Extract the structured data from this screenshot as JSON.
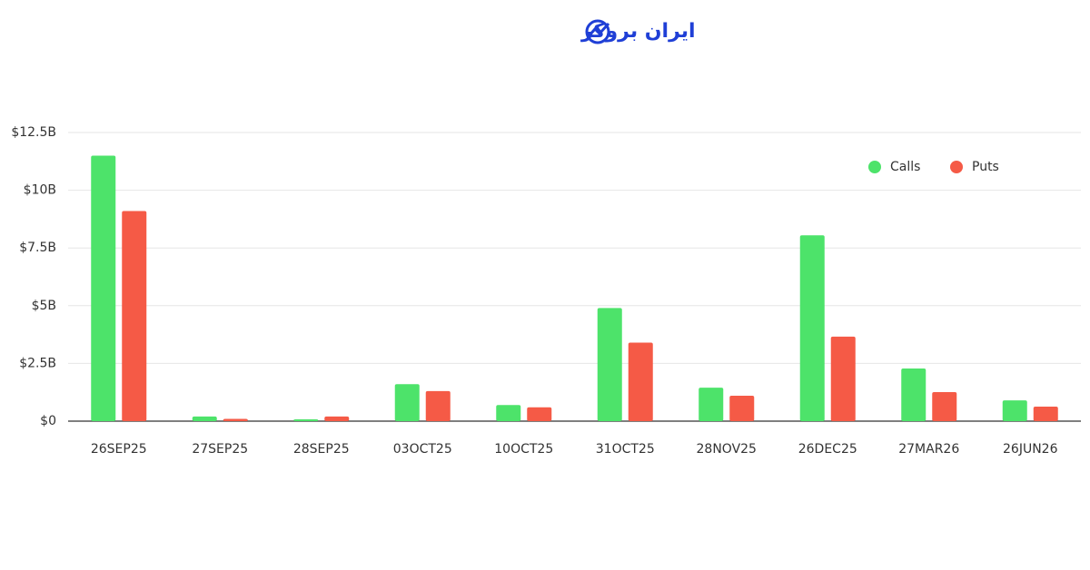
{
  "logo": "ایران بروکر",
  "chart_data": {
    "type": "bar",
    "categories": [
      "26SEP25",
      "27SEP25",
      "28SEP25",
      "03OCT25",
      "10OCT25",
      "31OCT25",
      "28NOV25",
      "26DEC25",
      "27MAR26",
      "26JUN26"
    ],
    "series": [
      {
        "name": "Calls",
        "color": "#4de36a",
        "values": [
          11.5,
          0.2,
          0.08,
          1.6,
          0.7,
          4.9,
          1.45,
          8.05,
          2.28,
          0.9
        ]
      },
      {
        "name": "Puts",
        "color": "#f55a46",
        "values": [
          9.1,
          0.1,
          0.2,
          1.3,
          0.6,
          3.4,
          1.1,
          3.66,
          1.26,
          0.63
        ]
      }
    ],
    "ylim": [
      0,
      12.5
    ],
    "yticks": [
      {
        "value": 0,
        "label": "$0"
      },
      {
        "value": 2.5,
        "label": "$2.5B"
      },
      {
        "value": 5,
        "label": "$5B"
      },
      {
        "value": 7.5,
        "label": "$7.5B"
      },
      {
        "value": 10,
        "label": "$10B"
      },
      {
        "value": 12.5,
        "label": "$12.5B"
      }
    ],
    "grid": true,
    "legend": "top-right"
  }
}
